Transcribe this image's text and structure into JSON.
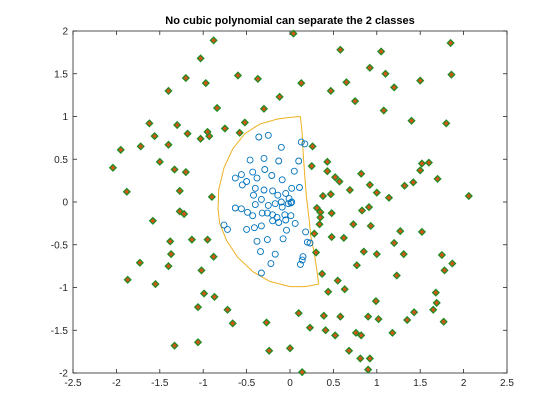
{
  "chart_data": {
    "type": "scatter",
    "title": "No cubic polynomial can separate the 2 classes",
    "xlabel": "",
    "ylabel": "",
    "xlim": [
      -2.5,
      2.5
    ],
    "ylim": [
      -2,
      2
    ],
    "x_ticks": [
      "-2.5",
      "-2",
      "-1.5",
      "-1",
      "-0.5",
      "0",
      "0.5",
      "1",
      "1.5",
      "2",
      "2.5"
    ],
    "y_ticks": [
      "-2",
      "-1.5",
      "-1",
      "-0.5",
      "0",
      "0.5",
      "1",
      "1.5",
      "2"
    ],
    "grid": false,
    "colors": {
      "inner_marker": "#0072bd",
      "outer_face": "#d95319",
      "outer_edge": "#228b22",
      "boundary": "#edb120",
      "axis": "#262626"
    },
    "series": [
      {
        "marker": "open-circle",
        "points": [
          [
            -0.36,
            0.76
          ],
          [
            -0.25,
            0.78
          ],
          [
            -0.1,
            0.64
          ],
          [
            0.13,
            0.7
          ],
          [
            0.17,
            0.68
          ],
          [
            -0.46,
            0.49
          ],
          [
            -0.3,
            0.51
          ],
          [
            -0.13,
            0.48
          ],
          [
            0.1,
            0.48
          ],
          [
            0.05,
            0.36
          ],
          [
            -0.56,
            0.32
          ],
          [
            -0.43,
            0.35
          ],
          [
            -0.38,
            0.28
          ],
          [
            -0.29,
            0.38
          ],
          [
            -0.21,
            0.31
          ],
          [
            -0.09,
            0.26
          ],
          [
            0.02,
            0.16
          ],
          [
            0.11,
            0.17
          ],
          [
            -0.63,
            0.28
          ],
          [
            -0.55,
            0.2
          ],
          [
            -0.5,
            0.24
          ],
          [
            -0.4,
            0.16
          ],
          [
            -0.3,
            0.14
          ],
          [
            -0.2,
            0.13
          ],
          [
            -0.14,
            0.08
          ],
          [
            -0.05,
            0.1
          ],
          [
            -0.01,
            0.04
          ],
          [
            0.01,
            -0.01
          ],
          [
            0.02,
            0.0
          ],
          [
            -0.42,
            0.08
          ],
          [
            -0.33,
            0.03
          ],
          [
            -0.25,
            -0.04
          ],
          [
            -0.17,
            -0.02
          ],
          [
            -0.09,
            -0.06
          ],
          [
            -0.1,
            0.0
          ],
          [
            -0.63,
            -0.07
          ],
          [
            -0.56,
            -0.08
          ],
          [
            -0.49,
            -0.12
          ],
          [
            -0.43,
            -0.16
          ],
          [
            -0.4,
            -0.03
          ],
          [
            -0.32,
            -0.13
          ],
          [
            -0.26,
            -0.13
          ],
          [
            -0.2,
            -0.15
          ],
          [
            -0.15,
            -0.18
          ],
          [
            -0.06,
            -0.15
          ],
          [
            -0.02,
            -0.02
          ],
          [
            -0.76,
            -0.27
          ],
          [
            -0.72,
            -0.32
          ],
          [
            -0.5,
            -0.32
          ],
          [
            -0.41,
            -0.3
          ],
          [
            -0.33,
            -0.28
          ],
          [
            -0.2,
            -0.22
          ],
          [
            -0.13,
            -0.24
          ],
          [
            -0.04,
            -0.33
          ],
          [
            -0.38,
            -0.46
          ],
          [
            -0.26,
            -0.44
          ],
          [
            -0.34,
            -0.58
          ],
          [
            0.18,
            -0.35
          ],
          [
            0.2,
            -0.47
          ],
          [
            0.23,
            -0.48
          ],
          [
            0.15,
            -0.64
          ],
          [
            0.12,
            -0.73
          ],
          [
            0.14,
            -0.68
          ],
          [
            -0.33,
            -0.83
          ],
          [
            -0.05,
            -0.21
          ],
          [
            0.06,
            -0.25
          ],
          [
            0.01,
            -0.16
          ],
          [
            -0.17,
            -0.61
          ],
          [
            -0.22,
            -0.72
          ],
          [
            -0.08,
            -0.43
          ]
        ]
      },
      {
        "marker": "filled-diamond",
        "points": [
          [
            0.04,
            1.97
          ],
          [
            -0.88,
            1.89
          ],
          [
            0.58,
            1.78
          ],
          [
            1.05,
            1.76
          ],
          [
            1.85,
            1.86
          ],
          [
            -1.03,
            1.68
          ],
          [
            -0.97,
            1.39
          ],
          [
            -0.6,
            1.48
          ],
          [
            -0.37,
            1.44
          ],
          [
            -0.12,
            1.23
          ],
          [
            0.13,
            1.39
          ],
          [
            0.47,
            1.3
          ],
          [
            0.65,
            1.4
          ],
          [
            0.92,
            1.57
          ],
          [
            1.1,
            1.5
          ],
          [
            1.2,
            1.34
          ],
          [
            1.5,
            1.42
          ],
          [
            1.86,
            1.49
          ],
          [
            -1.2,
            1.45
          ],
          [
            -1.4,
            1.3
          ],
          [
            -0.3,
            1.09
          ],
          [
            0.75,
            1.18
          ],
          [
            1.08,
            1.07
          ],
          [
            1.4,
            0.95
          ],
          [
            1.8,
            0.92
          ],
          [
            -1.62,
            0.92
          ],
          [
            -1.3,
            0.9
          ],
          [
            -1.18,
            0.8
          ],
          [
            -0.75,
            0.86
          ],
          [
            -0.58,
            0.81
          ],
          [
            -0.93,
            0.77
          ],
          [
            -1.03,
            0.74
          ],
          [
            -1.56,
            0.77
          ],
          [
            -0.52,
            0.93
          ],
          [
            0.26,
            0.65
          ],
          [
            0.25,
            0.42
          ],
          [
            0.43,
            0.47
          ],
          [
            0.43,
            0.36
          ],
          [
            0.52,
            0.29
          ],
          [
            0.38,
            0.07
          ],
          [
            0.47,
            0.09
          ],
          [
            0.31,
            -0.07
          ],
          [
            0.35,
            -0.12
          ],
          [
            0.57,
            0.24
          ],
          [
            0.69,
            0.14
          ],
          [
            0.82,
            0.33
          ],
          [
            0.92,
            0.2
          ],
          [
            1.0,
            0.11
          ],
          [
            1.14,
            0.05
          ],
          [
            1.32,
            0.19
          ],
          [
            1.42,
            0.23
          ],
          [
            1.5,
            0.37
          ],
          [
            1.52,
            0.45
          ],
          [
            1.6,
            0.46
          ],
          [
            1.7,
            0.27
          ],
          [
            2.06,
            0.07
          ],
          [
            -2.04,
            0.4
          ],
          [
            -1.95,
            0.61
          ],
          [
            -1.72,
            0.65
          ],
          [
            -1.5,
            0.47
          ],
          [
            -1.33,
            0.38
          ],
          [
            -1.2,
            0.35
          ],
          [
            -1.27,
            0.13
          ],
          [
            -0.9,
            0.06
          ],
          [
            -1.88,
            0.12
          ],
          [
            -1.58,
            -0.22
          ],
          [
            -1.27,
            -0.11
          ],
          [
            -1.22,
            -0.14
          ],
          [
            -1.38,
            -0.46
          ],
          [
            -1.13,
            -0.44
          ],
          [
            -1.37,
            -0.61
          ],
          [
            -1.4,
            -0.75
          ],
          [
            -1.73,
            -0.71
          ],
          [
            -1.87,
            -0.91
          ],
          [
            -1.55,
            -0.96
          ],
          [
            -1.02,
            -0.8
          ],
          [
            -0.88,
            -0.64
          ],
          [
            -0.99,
            -1.07
          ],
          [
            -0.87,
            -1.11
          ],
          [
            -0.72,
            -1.26
          ],
          [
            -0.66,
            -1.42
          ],
          [
            -1.06,
            -1.23
          ],
          [
            -1.06,
            -1.64
          ],
          [
            -1.33,
            -1.68
          ],
          [
            -0.27,
            -1.41
          ],
          [
            -0.24,
            -1.74
          ],
          [
            0.0,
            -1.71
          ],
          [
            0.14,
            -1.99
          ],
          [
            0.52,
            -1.56
          ],
          [
            0.39,
            -1.33
          ],
          [
            0.58,
            -1.34
          ],
          [
            0.76,
            -1.53
          ],
          [
            0.82,
            -1.56
          ],
          [
            0.9,
            -1.34
          ],
          [
            0.99,
            -1.16
          ],
          [
            1.02,
            -1.37
          ],
          [
            1.18,
            -1.53
          ],
          [
            1.35,
            -1.38
          ],
          [
            1.43,
            -1.29
          ],
          [
            1.65,
            -1.26
          ],
          [
            1.77,
            -1.4
          ],
          [
            1.69,
            -1.18
          ],
          [
            1.68,
            -1.06
          ],
          [
            1.78,
            -0.8
          ],
          [
            1.87,
            -0.72
          ],
          [
            1.75,
            -0.62
          ],
          [
            1.52,
            -0.35
          ],
          [
            1.27,
            -0.34
          ],
          [
            1.2,
            -0.48
          ],
          [
            1.31,
            -0.61
          ],
          [
            1.23,
            -0.86
          ],
          [
            1.0,
            -0.61
          ],
          [
            0.85,
            -0.58
          ],
          [
            0.77,
            -0.74
          ],
          [
            0.55,
            -0.92
          ],
          [
            0.62,
            -0.42
          ],
          [
            0.48,
            -0.13
          ],
          [
            0.48,
            -0.41
          ],
          [
            0.73,
            -0.26
          ],
          [
            0.93,
            -0.28
          ],
          [
            0.91,
            -0.06
          ],
          [
            0.83,
            -0.1
          ],
          [
            0.35,
            -0.18
          ],
          [
            0.34,
            -0.26
          ],
          [
            0.28,
            -0.37
          ],
          [
            0.3,
            -0.59
          ],
          [
            0.37,
            -0.84
          ],
          [
            0.44,
            -1.05
          ],
          [
            0.63,
            -1.02
          ],
          [
            0.23,
            -1.47
          ],
          [
            0.68,
            -1.74
          ],
          [
            0.9,
            -1.96
          ],
          [
            0.81,
            -1.83
          ],
          [
            0.41,
            -1.5
          ],
          [
            0.1,
            -1.3
          ],
          [
            0.92,
            -1.83
          ],
          [
            -1.4,
            0.67
          ],
          [
            -0.95,
            -0.44
          ],
          [
            -0.84,
            1.1
          ],
          [
            -0.95,
            0.82
          ]
        ]
      },
      {
        "type": "line",
        "points": [
          [
            0.12,
            1.0
          ],
          [
            0.0,
            0.99
          ],
          [
            -0.15,
            0.97
          ],
          [
            -0.35,
            0.91
          ],
          [
            -0.52,
            0.8
          ],
          [
            -0.66,
            0.62
          ],
          [
            -0.76,
            0.4
          ],
          [
            -0.82,
            0.15
          ],
          [
            -0.83,
            -0.08
          ],
          [
            -0.81,
            -0.25
          ],
          [
            -0.73,
            -0.45
          ],
          [
            -0.6,
            -0.65
          ],
          [
            -0.42,
            -0.82
          ],
          [
            -0.23,
            -0.93
          ],
          [
            0.0,
            -0.99
          ],
          [
            0.18,
            -0.99
          ],
          [
            0.33,
            -0.96
          ],
          [
            0.31,
            -0.8
          ],
          [
            0.28,
            -0.6
          ],
          [
            0.24,
            -0.4
          ],
          [
            0.22,
            -0.2
          ],
          [
            0.19,
            0.05
          ],
          [
            0.17,
            0.3
          ],
          [
            0.15,
            0.6
          ],
          [
            0.14,
            0.8
          ],
          [
            0.12,
            1.0
          ]
        ]
      }
    ]
  }
}
